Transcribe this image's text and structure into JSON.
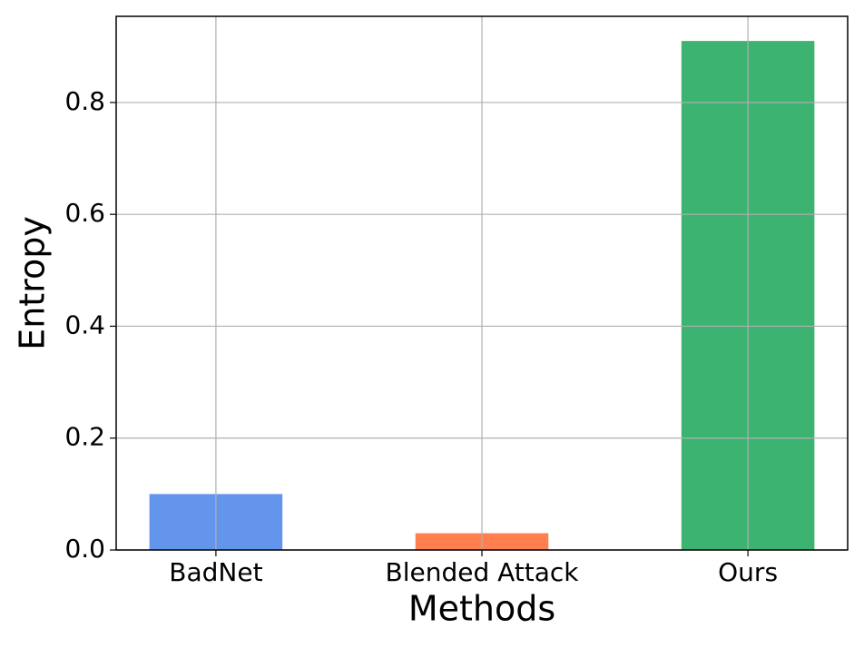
{
  "chart_data": {
    "type": "bar",
    "x_label": "Methods",
    "y_label": "Entropy",
    "categories": [
      "BadNet",
      "Blended Attack",
      "Ours"
    ],
    "values": [
      0.1,
      0.03,
      0.91
    ],
    "colors": [
      "#6495ed",
      "#ff7f50",
      "#3cb371"
    ],
    "ylim": [
      0,
      0.954
    ],
    "yticks": [
      {
        "value": 0,
        "label": "0.0"
      },
      0.2,
      0.4,
      0.6,
      0.8
    ],
    "grid": true
  }
}
